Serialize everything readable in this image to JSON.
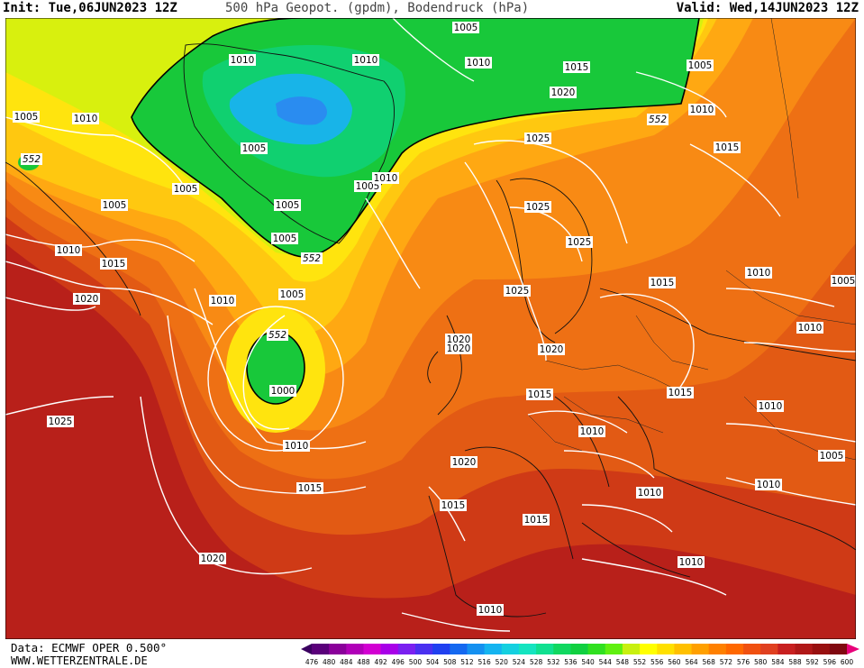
{
  "header": {
    "init": "Init: Tue,06JUN2023 12Z",
    "title": "500 hPa Geopot. (gpdm), Bodendruck (hPa)",
    "valid": "Valid: Wed,14JUN2023 12Z"
  },
  "footer": {
    "data_source": "Data: ECMWF OPER 0.500°",
    "website": "WWW.WETTERZENTRALE.DE"
  },
  "colorbar": {
    "values": [
      "476",
      "480",
      "484",
      "488",
      "492",
      "496",
      "500",
      "504",
      "508",
      "512",
      "516",
      "520",
      "524",
      "528",
      "532",
      "536",
      "540",
      "544",
      "548",
      "552",
      "556",
      "560",
      "564",
      "568",
      "572",
      "576",
      "580",
      "584",
      "588",
      "592",
      "596",
      "600"
    ],
    "colors": [
      "#3a0060",
      "#5a007a",
      "#8a009a",
      "#b000b8",
      "#d200d2",
      "#a800e8",
      "#7a20f0",
      "#4a30f0",
      "#2040f0",
      "#1468f0",
      "#1490f0",
      "#14b4f0",
      "#14d0e0",
      "#14e4c0",
      "#10e090",
      "#10d860",
      "#10d040",
      "#30e020",
      "#60f010",
      "#c8f010",
      "#ffff00",
      "#ffe000",
      "#ffc000",
      "#ffa000",
      "#ff8000",
      "#ff6800",
      "#f05010",
      "#e04020",
      "#c82020",
      "#b01818",
      "#981010",
      "#800810",
      "#e8007a"
    ]
  },
  "map": {
    "colors": {
      "ocean_deep_red": "#c42a1c",
      "red": "#d84816",
      "orange": "#ee6c14",
      "light_orange": "#f89014",
      "amber": "#ffb410",
      "yellow": "#ffe80e",
      "lime": "#c8f40e",
      "green": "#18c828",
      "cyan": "#18b4e8"
    },
    "isobar_labels": [
      "1005",
      "1010",
      "1015",
      "1020",
      "1025",
      "1000"
    ],
    "geopotential_labels": [
      "552"
    ]
  }
}
